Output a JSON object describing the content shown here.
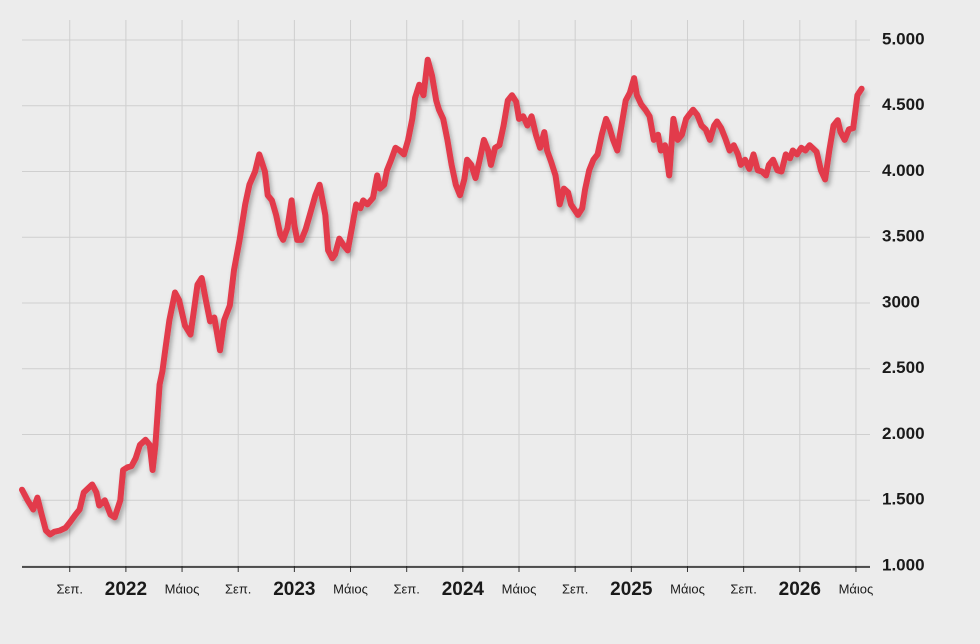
{
  "chart_data": {
    "type": "line",
    "x": [
      -7.4,
      -7.0,
      -6.6,
      -6.3,
      -6.0,
      -5.7,
      -5.4,
      -5.1,
      -4.7,
      -4.3,
      -4.0,
      -3.6,
      -3.3,
      -3.0,
      -2.7,
      -2.4,
      -2.1,
      -1.9,
      -1.5,
      -1.1,
      -0.8,
      -0.4,
      -0.2,
      0.1,
      0.4,
      0.7,
      1.0,
      1.4,
      1.7,
      1.9,
      2.1,
      2.4,
      2.6,
      2.8,
      3.1,
      3.5,
      3.8,
      4.2,
      4.6,
      4.8,
      5.1,
      5.4,
      5.7,
      6.0,
      6.3,
      6.7,
      7.0,
      7.4,
      7.7,
      8.1,
      8.5,
      8.8,
      9.2,
      9.5,
      9.9,
      10.1,
      10.4,
      10.7,
      11.0,
      11.2,
      11.5,
      11.8,
      12.0,
      12.2,
      12.5,
      12.8,
      13.1,
      13.5,
      13.8,
      14.2,
      14.4,
      14.7,
      14.9,
      15.2,
      15.5,
      15.8,
      16.1,
      16.4,
      16.7,
      16.9,
      17.2,
      17.6,
      17.9,
      18.1,
      18.4,
      18.6,
      18.9,
      19.2,
      19.5,
      19.8,
      20.1,
      20.4,
      20.6,
      20.9,
      21.2,
      21.5,
      21.8,
      22.1,
      22.3,
      22.6,
      22.9,
      23.2,
      23.5,
      23.8,
      24.1,
      24.3,
      24.6,
      24.9,
      25.2,
      25.5,
      25.8,
      26.0,
      26.3,
      26.6,
      26.9,
      27.2,
      27.5,
      27.8,
      28.0,
      28.3,
      28.6,
      28.9,
      29.2,
      29.5,
      29.8,
      30.0,
      30.3,
      30.6,
      30.9,
      31.2,
      31.5,
      31.7,
      32.2,
      32.5,
      32.7,
      33.0,
      33.3,
      33.6,
      33.9,
      34.2,
      34.4,
      34.7,
      35.0,
      35.3,
      35.6,
      35.9,
      36.2,
      36.4,
      36.7,
      37.0,
      37.3,
      37.6,
      37.9,
      38.1,
      38.4,
      38.7,
      39.0,
      39.3,
      39.6,
      39.9,
      40.1,
      40.4,
      40.7,
      41.0,
      41.3,
      41.6,
      41.9,
      42.1,
      42.4,
      42.7,
      43.0,
      43.3,
      43.6,
      43.8,
      44.1,
      44.4,
      44.7,
      45.0,
      45.3,
      45.6,
      45.8,
      46.1,
      46.4,
      46.7,
      47.0,
      47.3,
      47.5,
      47.8,
      48.1,
      48.4,
      48.7,
      48.9,
      49.2,
      49.5,
      49.8,
      50.1,
      50.4,
      50.7,
      50.9,
      51.2,
      51.5,
      51.8,
      52.1,
      52.4
    ],
    "series": [
      {
        "color": "#e23b4b",
        "values": [
          1580,
          1500,
          1430,
          1520,
          1390,
          1270,
          1240,
          1260,
          1270,
          1290,
          1330,
          1390,
          1430,
          1560,
          1590,
          1620,
          1560,
          1460,
          1500,
          1390,
          1370,
          1500,
          1730,
          1750,
          1760,
          1820,
          1920,
          1960,
          1920,
          1730,
          1920,
          2380,
          2480,
          2640,
          2870,
          3080,
          3020,
          2830,
          2760,
          2910,
          3140,
          3190,
          3020,
          2860,
          2890,
          2640,
          2870,
          2980,
          3250,
          3480,
          3750,
          3900,
          4000,
          4130,
          4000,
          3820,
          3780,
          3670,
          3520,
          3480,
          3570,
          3780,
          3590,
          3480,
          3480,
          3560,
          3670,
          3820,
          3900,
          3670,
          3400,
          3340,
          3370,
          3490,
          3440,
          3400,
          3570,
          3750,
          3720,
          3780,
          3750,
          3800,
          3970,
          3870,
          3900,
          4010,
          4090,
          4180,
          4160,
          4130,
          4240,
          4400,
          4560,
          4660,
          4580,
          4850,
          4730,
          4540,
          4470,
          4400,
          4240,
          4050,
          3900,
          3820,
          3940,
          4090,
          4050,
          3950,
          4090,
          4240,
          4160,
          4050,
          4180,
          4200,
          4350,
          4540,
          4580,
          4530,
          4400,
          4420,
          4350,
          4420,
          4280,
          4180,
          4300,
          4160,
          4070,
          3970,
          3750,
          3870,
          3840,
          3750,
          3670,
          3720,
          3860,
          4010,
          4090,
          4130,
          4280,
          4400,
          4350,
          4240,
          4160,
          4350,
          4540,
          4600,
          4710,
          4580,
          4510,
          4470,
          4420,
          4240,
          4280,
          4160,
          4200,
          3970,
          4400,
          4240,
          4280,
          4400,
          4430,
          4470,
          4430,
          4350,
          4320,
          4240,
          4350,
          4380,
          4330,
          4250,
          4160,
          4200,
          4130,
          4050,
          4090,
          4020,
          4130,
          4010,
          4000,
          3970,
          4050,
          4090,
          4010,
          4000,
          4130,
          4100,
          4160,
          4130,
          4180,
          4160,
          4200,
          4180,
          4150,
          4010,
          3940,
          4160,
          4350,
          4390,
          4300,
          4240,
          4320,
          4330,
          4580,
          4630
        ]
      }
    ],
    "xlim": [
      -7.4,
      53
    ],
    "xticks": [
      {
        "value": -4,
        "label": "Σεπ."
      },
      {
        "value": 0,
        "label": "2022"
      },
      {
        "value": 4,
        "label": "Μάιος"
      },
      {
        "value": 8,
        "label": "Σεπ."
      },
      {
        "value": 12,
        "label": "2023"
      },
      {
        "value": 16,
        "label": "Μάιος"
      },
      {
        "value": 20,
        "label": "Σεπ."
      },
      {
        "value": 24,
        "label": "2024"
      },
      {
        "value": 28,
        "label": "Μάιος"
      },
      {
        "value": 32,
        "label": "Σεπ."
      },
      {
        "value": 36,
        "label": "2025"
      },
      {
        "value": 40,
        "label": "Μάιος"
      },
      {
        "value": 44,
        "label": "Σεπ."
      },
      {
        "value": 48,
        "label": "2026"
      },
      {
        "value": 52,
        "label": "Μάιος"
      }
    ],
    "ylim": [
      1000,
      5000
    ],
    "yticks": [
      {
        "value": 1000,
        "label": "1.000"
      },
      {
        "value": 1500,
        "label": "1.500"
      },
      {
        "value": 2000,
        "label": "2.000"
      },
      {
        "value": 2500,
        "label": "2.500"
      },
      {
        "value": 3000,
        "label": "3000"
      },
      {
        "value": 3500,
        "label": "3.500"
      },
      {
        "value": 4000,
        "label": "4.000"
      },
      {
        "value": 4500,
        "label": "4.500"
      },
      {
        "value": 5000,
        "label": "5.000"
      }
    ],
    "grid": true
  }
}
